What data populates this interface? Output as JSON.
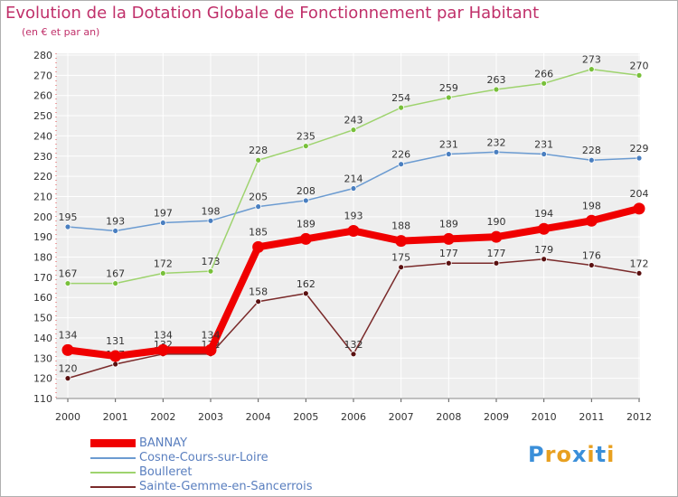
{
  "title": "Evolution de la Dotation Globale de Fonctionnement par Habitant",
  "subtitle": "(en € et par an)",
  "logo": {
    "text": "Proxiti",
    "letters": [
      "P",
      "r",
      "o",
      "x",
      "i",
      "t",
      "i"
    ],
    "colors": [
      "#3b8fd9",
      "#e8a020",
      "#e8a020",
      "#3b8fd9",
      "#e8a020",
      "#3b8fd9",
      "#e8a020"
    ]
  },
  "chart_data": {
    "type": "line",
    "title": "Evolution de la Dotation Globale de Fonctionnement par Habitant",
    "subtitle": "(en € et par an)",
    "xlabel": "",
    "ylabel": "",
    "x": [
      "2000",
      "2001",
      "2002",
      "2003",
      "2004",
      "2005",
      "2006",
      "2007",
      "2008",
      "2009",
      "2010",
      "2011",
      "2012"
    ],
    "ylim": [
      110,
      280
    ],
    "yticks": [
      110,
      120,
      130,
      140,
      150,
      160,
      170,
      180,
      190,
      200,
      210,
      220,
      230,
      240,
      250,
      260,
      270,
      280
    ],
    "grid": true,
    "legend_position": "bottom-left",
    "series": [
      {
        "name": "Cosne-Cours-sur-Loire",
        "color": "#6b9bd1",
        "marker": "#4a7fc0",
        "emphasis": "normal",
        "values": [
          195,
          193,
          197,
          198,
          205,
          208,
          214,
          226,
          231,
          232,
          231,
          228,
          229
        ]
      },
      {
        "name": "Boulleret",
        "color": "#9ed36e",
        "marker": "#78c03a",
        "emphasis": "normal",
        "values": [
          167,
          167,
          172,
          173,
          228,
          235,
          243,
          254,
          259,
          263,
          266,
          273,
          270
        ]
      },
      {
        "name": "Sainte-Gemme-en-Sancerrois",
        "color": "#7a2a2a",
        "marker": "#5a1010",
        "emphasis": "normal",
        "values": [
          120,
          127,
          132,
          132,
          158,
          162,
          132,
          175,
          177,
          177,
          179,
          176,
          172
        ]
      },
      {
        "name": "BANNAY",
        "color": "#f00000",
        "marker": "#f00000",
        "emphasis": "bold",
        "values": [
          134,
          131,
          134,
          134,
          185,
          189,
          193,
          188,
          189,
          190,
          194,
          198,
          204
        ]
      }
    ],
    "legend": [
      "BANNAY",
      "Cosne-Cours-sur-Loire",
      "Boulleret",
      "Sainte-Gemme-en-Sancerrois"
    ]
  }
}
